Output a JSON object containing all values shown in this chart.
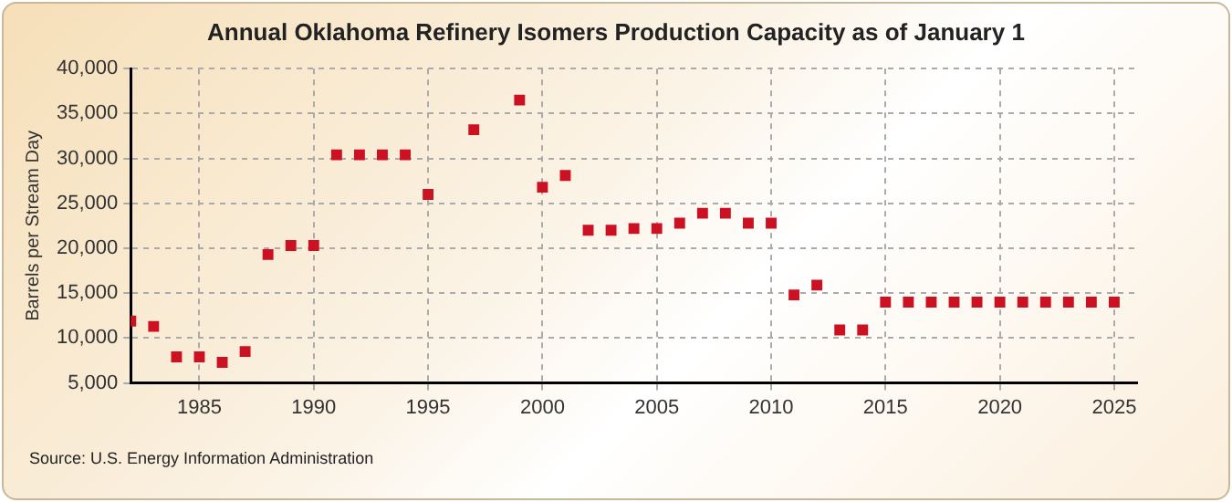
{
  "chart_data": {
    "type": "scatter",
    "title": "Annual Oklahoma Refinery Isomers Production Capacity as of January 1",
    "ylabel": "Barrels per Stream Day",
    "x": [
      1982,
      1983,
      1984,
      1985,
      1986,
      1987,
      1988,
      1989,
      1990,
      1991,
      1992,
      1993,
      1994,
      1995,
      1996,
      1997,
      1998,
      1999,
      2000,
      2001,
      2002,
      2003,
      2004,
      2005,
      2006,
      2007,
      2008,
      2009,
      2010,
      2011,
      2012,
      2013,
      2014,
      2015,
      2016,
      2017,
      2018,
      2019,
      2020,
      2021,
      2022,
      2023,
      2024,
      2025
    ],
    "series": [
      {
        "color": "#cc1122",
        "values": [
          11900,
          11300,
          7900,
          7900,
          7300,
          8500,
          19300,
          20300,
          20300,
          30400,
          30400,
          30400,
          30400,
          26000,
          null,
          33200,
          null,
          36500,
          26800,
          28100,
          22000,
          22000,
          22200,
          22200,
          22800,
          23900,
          23900,
          22800,
          22800,
          14800,
          15900,
          10900,
          10900,
          14000,
          14000,
          14000,
          14000,
          14000,
          14000,
          14000,
          14000,
          14000,
          14000,
          14000
        ]
      }
    ],
    "xlim": [
      1982,
      2026
    ],
    "xticks": [
      1985,
      1990,
      1995,
      2000,
      2005,
      2010,
      2015,
      2020,
      2025
    ],
    "ylim": [
      5000,
      40000
    ],
    "yticks": [
      {
        "value": 5000,
        "label": "5,000"
      },
      {
        "value": 10000,
        "label": "10,000"
      },
      {
        "value": 15000,
        "label": "15,000"
      },
      {
        "value": 20000,
        "label": "20,000"
      },
      {
        "value": 25000,
        "label": "25,000"
      },
      {
        "value": 30000,
        "label": "30,000"
      },
      {
        "value": 35000,
        "label": "35,000"
      },
      {
        "value": 40000,
        "label": "40,000"
      }
    ],
    "grid": true,
    "marker": "square",
    "legend": false,
    "annotations": [
      "Source: U.S. Energy Information Administration"
    ]
  }
}
